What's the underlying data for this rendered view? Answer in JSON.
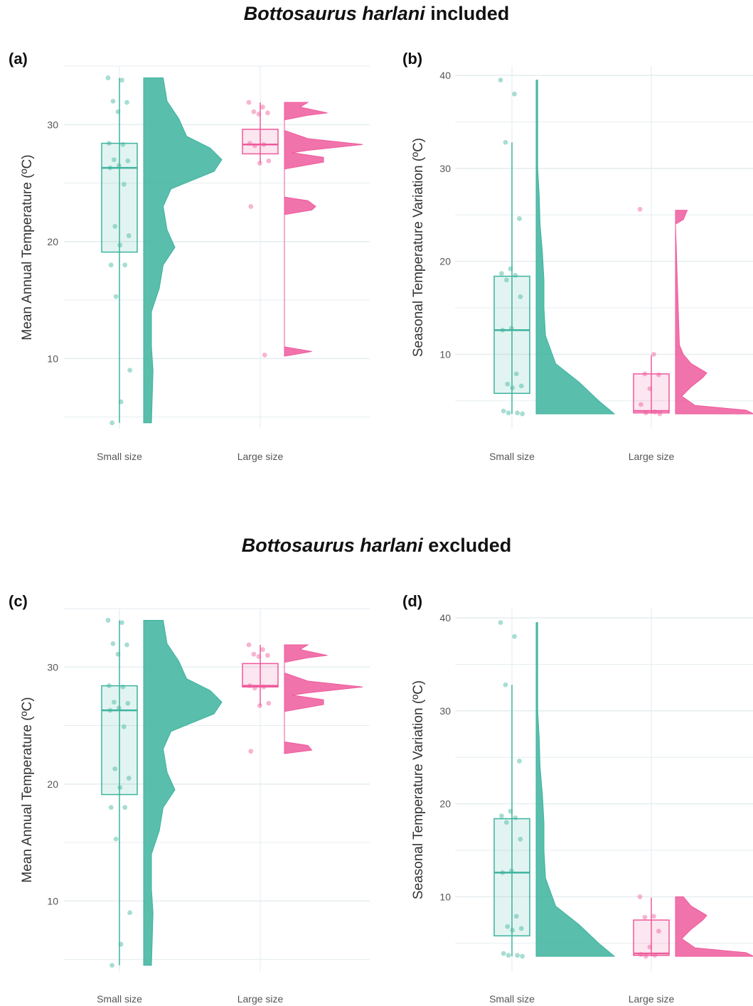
{
  "titles": {
    "top": {
      "italic": "Bottosaurus harlani",
      "rest": " included"
    },
    "bottom": {
      "italic": "Bottosaurus harlani",
      "rest": " excluded"
    }
  },
  "colors": {
    "small": "#3db39e",
    "large": "#ee5a9c",
    "grid": "#e6eef0"
  },
  "chart_data": [
    {
      "panel": "(a)",
      "type": "raincloud",
      "ylabel": "Mean Annual Temperature (ºC)",
      "categories": [
        "Small size",
        "Large size"
      ],
      "ylim": [
        4,
        35
      ],
      "yticks": [
        10,
        20,
        30
      ],
      "groups": [
        {
          "name": "Small size",
          "box": {
            "q1": 19.1,
            "median": 26.3,
            "q3": 28.4,
            "min": 4.5,
            "max": 34
          },
          "points": [
            34,
            33.8,
            32,
            31.9,
            31.1,
            28.4,
            28.3,
            27,
            26.9,
            26.5,
            26.3,
            24.9,
            21.3,
            20.5,
            19.7,
            18,
            18,
            15.3,
            9,
            6.3,
            4.5
          ],
          "density": [
            [
              4.5,
              0.1
            ],
            [
              9,
              0.12
            ],
            [
              11,
              0.1
            ],
            [
              14,
              0.1
            ],
            [
              16,
              0.2
            ],
            [
              18,
              0.25
            ],
            [
              19.5,
              0.4
            ],
            [
              21,
              0.3
            ],
            [
              23,
              0.25
            ],
            [
              24.5,
              0.35
            ],
            [
              26,
              0.9
            ],
            [
              27,
              1
            ],
            [
              28,
              0.85
            ],
            [
              29,
              0.55
            ],
            [
              30.5,
              0.45
            ],
            [
              32,
              0.3
            ],
            [
              34,
              0.25
            ]
          ]
        },
        {
          "name": "Large size",
          "box": {
            "q1": 27.5,
            "median": 28.3,
            "q3": 29.6,
            "min": 26.7,
            "max": 31.9
          },
          "points": [
            31.9,
            31.5,
            31.1,
            31,
            30.9,
            28.4,
            28.3,
            28.2,
            26.9,
            26.7,
            23,
            10.3
          ],
          "density": [
            [
              10.2,
              0
            ],
            [
              10.6,
              0.35
            ],
            [
              11,
              0
            ],
            [
              22.3,
              0
            ],
            [
              22.7,
              0.35
            ],
            [
              23,
              0.4
            ],
            [
              23.5,
              0.3
            ],
            [
              23.8,
              0
            ],
            [
              26.2,
              0
            ],
            [
              26.8,
              0.5
            ],
            [
              27.2,
              0.5
            ],
            [
              27.6,
              0.1
            ],
            [
              27.8,
              0.3
            ],
            [
              28.3,
              1
            ],
            [
              28.8,
              0.3
            ],
            [
              29.5,
              0
            ],
            [
              30.4,
              0
            ],
            [
              30.8,
              0.3
            ],
            [
              31,
              0.55
            ],
            [
              31.5,
              0.2
            ],
            [
              31.9,
              0.3
            ]
          ]
        }
      ]
    },
    {
      "panel": "(b)",
      "type": "raincloud",
      "ylabel": "Seasonal Temperature Variation (ºC)",
      "categories": [
        "Small size",
        "Large size"
      ],
      "ylim": [
        2,
        41
      ],
      "yticks": [
        10,
        20,
        30,
        40
      ],
      "groups": [
        {
          "name": "Small size",
          "box": {
            "q1": 5.8,
            "median": 12.6,
            "q3": 18.4,
            "min": 3.6,
            "max": 32.8
          },
          "points": [
            39.5,
            38,
            32.8,
            24.6,
            19.2,
            18.7,
            18.5,
            18,
            16.2,
            12.8,
            12.6,
            7.9,
            6.8,
            6.6,
            6.4,
            3.9,
            3.7,
            3.7,
            3.6
          ],
          "density": [
            [
              3.6,
              1
            ],
            [
              5,
              0.8
            ],
            [
              7,
              0.55
            ],
            [
              9,
              0.25
            ],
            [
              12,
              0.12
            ],
            [
              15,
              0.1
            ],
            [
              18,
              0.1
            ],
            [
              21,
              0.08
            ],
            [
              24,
              0.05
            ],
            [
              27,
              0.04
            ],
            [
              30,
              0.02
            ],
            [
              35,
              0.02
            ],
            [
              39.5,
              0.02
            ]
          ]
        },
        {
          "name": "Large size",
          "box": {
            "q1": 3.7,
            "median": 3.9,
            "q3": 7.9,
            "min": 3.6,
            "max": 9.9
          },
          "points": [
            25.6,
            10,
            7.9,
            7.8,
            6.3,
            4.6,
            3.8,
            3.7,
            3.6
          ],
          "density": [
            [
              3.6,
              1
            ],
            [
              4,
              0.9
            ],
            [
              4.5,
              0.25
            ],
            [
              5.5,
              0.08
            ],
            [
              6.5,
              0.2
            ],
            [
              7.5,
              0.35
            ],
            [
              8,
              0.4
            ],
            [
              9,
              0.2
            ],
            [
              10,
              0.1
            ],
            [
              11,
              0.05
            ],
            [
              24,
              0
            ],
            [
              24.5,
              0.1
            ],
            [
              25.5,
              0.15
            ]
          ]
        }
      ]
    },
    {
      "panel": "(c)",
      "type": "raincloud",
      "ylabel": "Mean Annual Temperature (ºC)",
      "categories": [
        "Small size",
        "Large size"
      ],
      "ylim": [
        4,
        35
      ],
      "yticks": [
        10,
        20,
        30
      ],
      "groups": [
        {
          "name": "Small size",
          "box": {
            "q1": 19.1,
            "median": 26.3,
            "q3": 28.4,
            "min": 4.5,
            "max": 34
          },
          "points": [
            34,
            33.8,
            32,
            31.9,
            31.1,
            28.4,
            28.3,
            27,
            26.9,
            26.5,
            26.3,
            24.9,
            21.3,
            20.5,
            19.7,
            18,
            18,
            15.3,
            9,
            6.3,
            4.5
          ],
          "density": [
            [
              4.5,
              0.1
            ],
            [
              9,
              0.12
            ],
            [
              11,
              0.1
            ],
            [
              14,
              0.1
            ],
            [
              16,
              0.2
            ],
            [
              18,
              0.25
            ],
            [
              19.5,
              0.4
            ],
            [
              21,
              0.3
            ],
            [
              23,
              0.25
            ],
            [
              24.5,
              0.35
            ],
            [
              26,
              0.9
            ],
            [
              27,
              1
            ],
            [
              28,
              0.85
            ],
            [
              29,
              0.55
            ],
            [
              30.5,
              0.45
            ],
            [
              32,
              0.3
            ],
            [
              34,
              0.25
            ]
          ]
        },
        {
          "name": "Large size",
          "box": {
            "q1": 28.3,
            "median": 28.4,
            "q3": 30.3,
            "min": 26.7,
            "max": 31.9
          },
          "points": [
            31.9,
            31.5,
            31.1,
            31,
            30.9,
            28.4,
            28.3,
            28.2,
            26.9,
            26.7,
            22.8
          ],
          "density": [
            [
              22.6,
              0
            ],
            [
              22.9,
              0.35
            ],
            [
              23.3,
              0.3
            ],
            [
              23.6,
              0
            ],
            [
              26.2,
              0
            ],
            [
              26.8,
              0.5
            ],
            [
              27.2,
              0.5
            ],
            [
              27.6,
              0.1
            ],
            [
              27.8,
              0.3
            ],
            [
              28.3,
              1
            ],
            [
              28.8,
              0.3
            ],
            [
              29.5,
              0
            ],
            [
              30.4,
              0
            ],
            [
              30.8,
              0.3
            ],
            [
              31,
              0.55
            ],
            [
              31.5,
              0.2
            ],
            [
              31.9,
              0.3
            ]
          ]
        }
      ]
    },
    {
      "panel": "(d)",
      "type": "raincloud",
      "ylabel": "Seasonal Temperature Variation (ºC)",
      "categories": [
        "Small size",
        "Large size"
      ],
      "ylim": [
        2,
        41
      ],
      "yticks": [
        10,
        20,
        30,
        40
      ],
      "groups": [
        {
          "name": "Small size",
          "box": {
            "q1": 5.8,
            "median": 12.6,
            "q3": 18.4,
            "min": 3.6,
            "max": 32.8
          },
          "points": [
            39.5,
            38,
            32.8,
            24.6,
            19.2,
            18.7,
            18.5,
            18,
            16.2,
            12.8,
            12.6,
            7.9,
            6.8,
            6.6,
            6.4,
            3.9,
            3.7,
            3.7,
            3.6
          ],
          "density": [
            [
              3.6,
              1
            ],
            [
              5,
              0.8
            ],
            [
              7,
              0.55
            ],
            [
              9,
              0.25
            ],
            [
              12,
              0.12
            ],
            [
              15,
              0.1
            ],
            [
              18,
              0.1
            ],
            [
              21,
              0.08
            ],
            [
              24,
              0.05
            ],
            [
              27,
              0.04
            ],
            [
              30,
              0.02
            ],
            [
              35,
              0.02
            ],
            [
              39.5,
              0.02
            ]
          ]
        },
        {
          "name": "Large size",
          "box": {
            "q1": 3.7,
            "median": 3.9,
            "q3": 7.5,
            "min": 3.6,
            "max": 9.9
          },
          "points": [
            10,
            7.9,
            7.8,
            6.3,
            4.6,
            3.8,
            3.7,
            3.6
          ],
          "density": [
            [
              3.6,
              1
            ],
            [
              4,
              0.9
            ],
            [
              4.5,
              0.25
            ],
            [
              5.5,
              0.08
            ],
            [
              6.5,
              0.2
            ],
            [
              7.5,
              0.35
            ],
            [
              8,
              0.4
            ],
            [
              9,
              0.2
            ],
            [
              10,
              0.1
            ]
          ]
        }
      ]
    }
  ]
}
